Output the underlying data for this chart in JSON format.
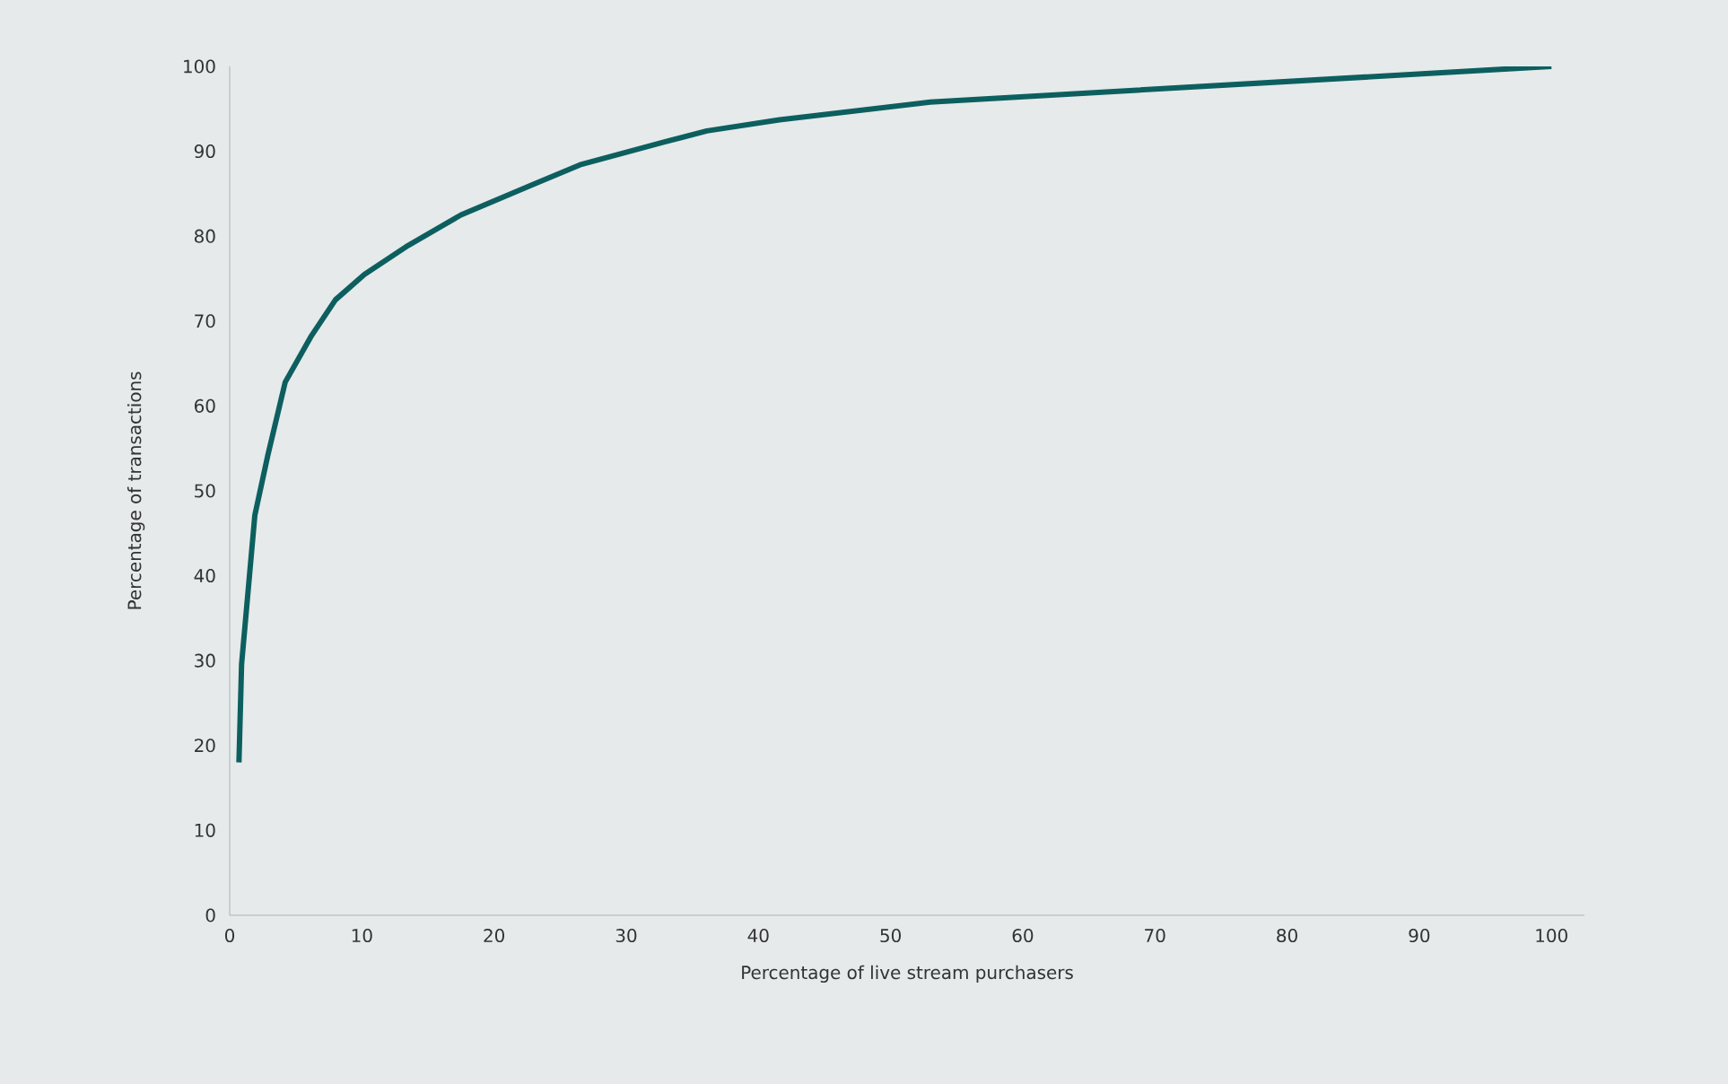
{
  "chart_data": {
    "type": "line",
    "xlabel": "Percentage of live stream purchasers",
    "ylabel": "Percentage of transactions",
    "xlim": [
      0,
      102.5
    ],
    "ylim": [
      0,
      100
    ],
    "xticks": [
      0,
      10,
      20,
      30,
      40,
      50,
      60,
      70,
      80,
      90,
      100
    ],
    "yticks": [
      0,
      10,
      20,
      30,
      40,
      50,
      60,
      70,
      80,
      90,
      100
    ],
    "grid": false,
    "marker": "none",
    "line_style": "solid",
    "series": [
      {
        "color": "#0d5f5f",
        "x": [
          0.7,
          0.9,
          1.9,
          2.9,
          4.2,
          6.2,
          8.0,
          10.2,
          13.5,
          17.5,
          22.8,
          26.5,
          32.9,
          36.1,
          41.6,
          53.0,
          100
        ],
        "values": [
          18.0,
          29.6,
          47.1,
          54.3,
          62.8,
          68.3,
          72.5,
          75.5,
          78.9,
          82.5,
          86.0,
          88.4,
          91.1,
          92.4,
          93.7,
          95.8,
          100
        ]
      }
    ]
  }
}
